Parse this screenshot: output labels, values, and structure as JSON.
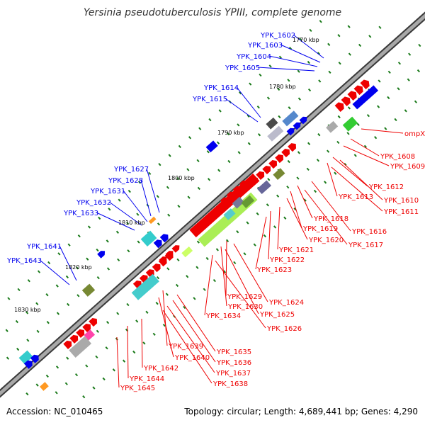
{
  "title": "Yersinia pseudotuberculosis YPIII, complete genome",
  "accession": "Accession: NC_010465",
  "summary": "Topology: circular; Length: 4,689,441 bp; Genes: 4,290",
  "colors": {
    "backbone": "#9a9a9a",
    "backbone_edge": "#444444",
    "forward_label": "#0000ee",
    "reverse_label": "#ee0000",
    "tick": "#1a7a1a",
    "cds": "#ee0000",
    "cds_fwd": "#0000ee",
    "rna": "#ccff66",
    "misc": "#00cccc"
  },
  "kbp_markers": [
    "1770 kbp",
    "1780 kbp",
    "1790 kbp",
    "1800 kbp",
    "1810 kbp",
    "1820 kbp",
    "1830 kbp"
  ],
  "forward_genes": [
    "YPK_1602",
    "YPK_1603",
    "YPK_1604",
    "YPK_1605",
    "YPK_1614",
    "YPK_1615",
    "YPK_1627",
    "YPK_1628",
    "YPK_1631",
    "YPK_1632",
    "YPK_1633",
    "YPK_1641",
    "YPK_1643"
  ],
  "reverse_genes": [
    "ompX",
    "YPK_1608",
    "YPK_1609",
    "YPK_1612",
    "YPK_1613",
    "YPK_1610",
    "YPK_1611",
    "YPK_1618",
    "YPK_1616",
    "YPK_1619",
    "YPK_1620",
    "YPK_1617",
    "YPK_1621",
    "YPK_1622",
    "YPK_1623",
    "YPK_1629",
    "YPK_1624",
    "YPK_1630",
    "YPK_1625",
    "YPK_1634",
    "YPK_1626",
    "YPK_1639",
    "YPK_1635",
    "YPK_1640",
    "YPK_1636",
    "YPK_1642",
    "YPK_1637",
    "YPK_1644",
    "YPK_1638",
    "YPK_1645"
  ]
}
